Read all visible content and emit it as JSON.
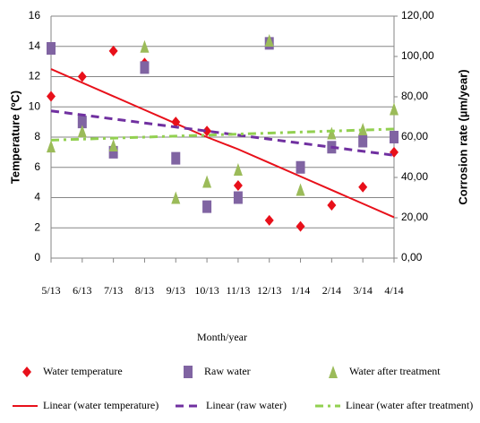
{
  "chart_data": {
    "type": "scatter",
    "x_label": "Month/year",
    "y_label": "Temperature (ºC)",
    "y2_label": "Corrosion rate (µm/year)",
    "categories": [
      "5/13",
      "6/13",
      "7/13",
      "8/13",
      "9/13",
      "10/13",
      "11/13",
      "12/13",
      "1/14",
      "2/14",
      "3/14",
      "4/14"
    ],
    "ylim": [
      0,
      16
    ],
    "yticks": [
      0,
      2,
      4,
      6,
      8,
      10,
      12,
      14,
      16
    ],
    "y2lim": [
      0,
      120
    ],
    "y2ticks": [
      {
        "value": 0,
        "label": "0,00"
      },
      {
        "value": 20,
        "label": "20,00"
      },
      {
        "value": 40,
        "label": "40,00"
      },
      {
        "value": 60,
        "label": "60,00"
      },
      {
        "value": 80,
        "label": "80,00"
      },
      {
        "value": 100,
        "label": "100,00"
      },
      {
        "value": 120,
        "label": "120,00"
      }
    ],
    "grid": true,
    "series": [
      {
        "name": "Water temperature",
        "color": "#e8101a",
        "marker": "diamond",
        "values": [
          10.7,
          12.0,
          13.7,
          12.9,
          9.0,
          8.4,
          4.8,
          2.5,
          2.1,
          3.5,
          4.7,
          7.0
        ]
      },
      {
        "name": "Raw water",
        "color": "#8064a2",
        "marker": "square",
        "axis": "y2",
        "values": [
          104,
          67.5,
          52.5,
          94.5,
          49.5,
          25.5,
          30,
          106.5,
          45,
          55,
          58,
          60
        ]
      },
      {
        "name": "Water after treatment",
        "color": "#9bbb59",
        "marker": "triangle",
        "axis": "y2",
        "values": [
          55.5,
          63,
          56,
          105,
          30,
          38,
          44,
          108,
          34,
          62,
          64,
          74
        ]
      },
      {
        "name": "Linear (water temperature)",
        "color": "#e8101a",
        "line": "solid",
        "values": [
          12.5,
          11.6,
          10.7,
          9.8,
          8.9,
          8.0,
          7.2,
          6.3,
          5.4,
          4.5,
          3.6,
          2.7
        ]
      },
      {
        "name": "Linear (raw water)",
        "color": "#7030a0",
        "line": "dash",
        "axis": "y2",
        "values": [
          73,
          71,
          69,
          67,
          65,
          63,
          61,
          59,
          57,
          55,
          53,
          51
        ]
      },
      {
        "name": "Linear (water after treatment)",
        "color": "#92d050",
        "line": "dashdot",
        "axis": "y2",
        "values": [
          58.5,
          59,
          59.5,
          60,
          60.5,
          61,
          61.5,
          62,
          62.5,
          63,
          63.5,
          64
        ]
      }
    ]
  }
}
